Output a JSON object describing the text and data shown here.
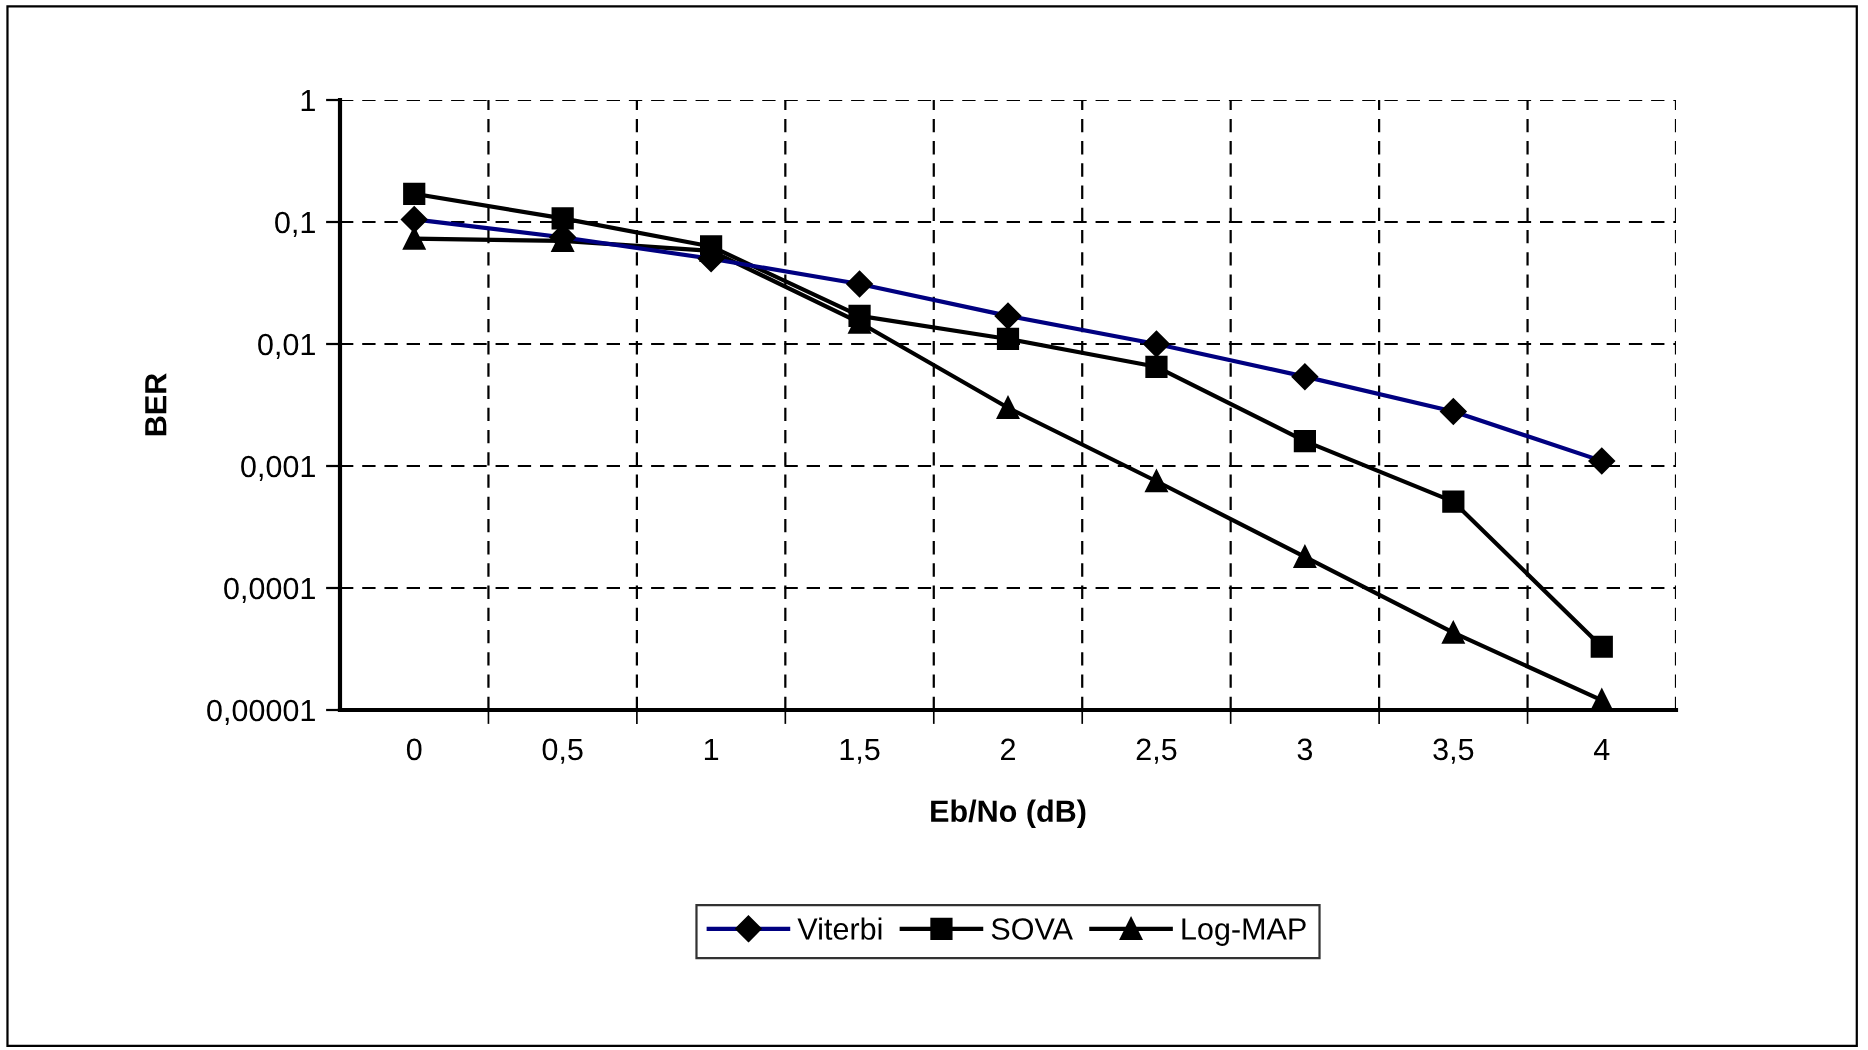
{
  "chart_data": {
    "type": "line",
    "xlabel": "Eb/No (dB)",
    "ylabel": "BER",
    "categories": [
      "0",
      "0,5",
      "1",
      "1,5",
      "2",
      "2,5",
      "3",
      "3,5",
      "4"
    ],
    "series": [
      {
        "name": "Viterbi",
        "color": "#000080",
        "marker": "diamond",
        "values": [
          0.105,
          0.075,
          0.05,
          0.031,
          0.017,
          0.01,
          0.0054,
          0.0028,
          0.0011
        ]
      },
      {
        "name": "SOVA",
        "color": "#000000",
        "marker": "square",
        "values": [
          0.17,
          0.107,
          0.063,
          0.017,
          0.011,
          0.0065,
          0.0016,
          0.00051,
          3.3e-05
        ]
      },
      {
        "name": "Log-MAP",
        "color": "#000000",
        "marker": "triangle",
        "values": [
          0.073,
          0.07,
          0.058,
          0.015,
          0.003,
          0.00075,
          0.00018,
          4.3e-05,
          1.2e-05
        ]
      }
    ],
    "log": "y",
    "ylim": [
      1e-05,
      1
    ],
    "yticks": [
      {
        "value": 1e-05,
        "label": "0,00001"
      },
      {
        "value": 0.0001,
        "label": "0,0001"
      },
      {
        "value": 0.001,
        "label": "0,001"
      },
      {
        "value": 0.01,
        "label": "0,01"
      },
      {
        "value": 0.1,
        "label": "0,1"
      },
      1
    ],
    "grid": true,
    "legend": "bottom",
    "line_style": "solid"
  }
}
